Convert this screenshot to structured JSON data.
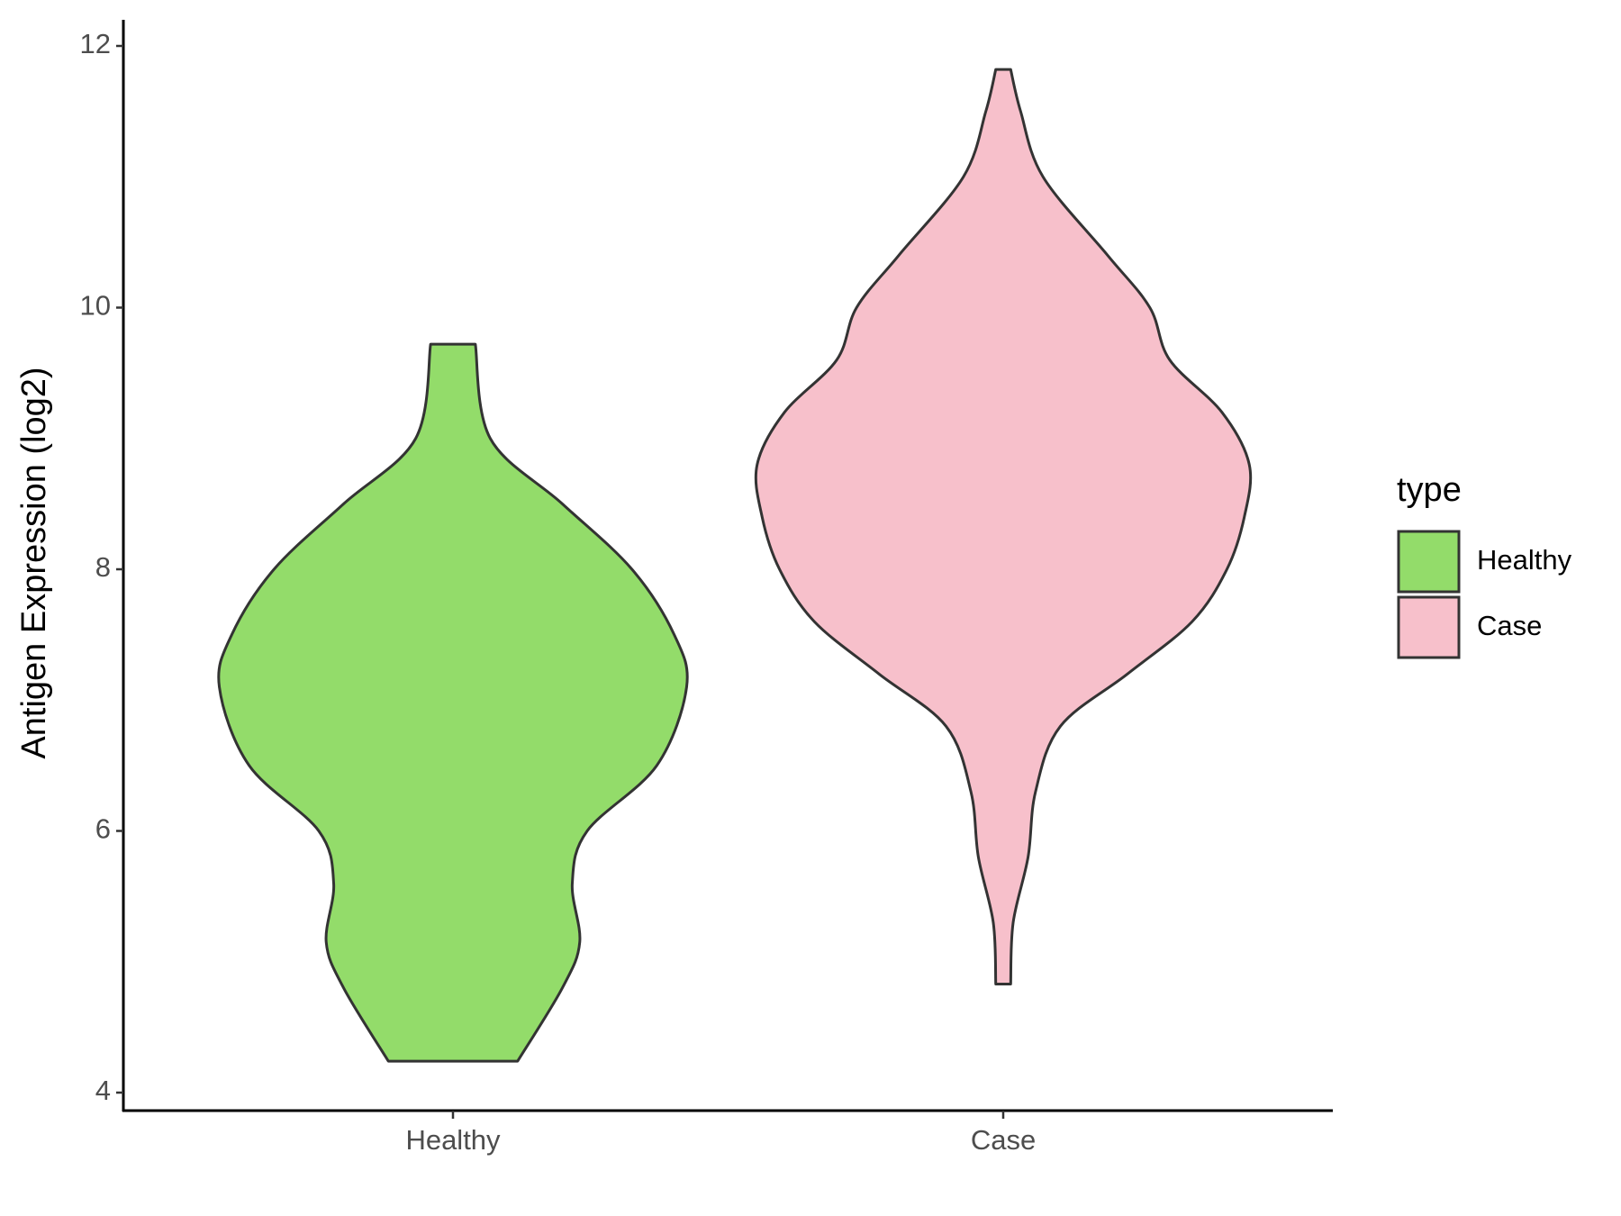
{
  "chart_data": {
    "type": "violin",
    "y_label": "Antigen Expression (log2)",
    "categories": [
      "Healthy",
      "Case"
    ],
    "legend_title": "type",
    "ylim": [
      4,
      12
    ],
    "yticks": [
      4,
      6,
      8,
      10,
      12
    ],
    "series": [
      {
        "name": "Healthy",
        "color": "#93dc6a",
        "y": [
          4.24,
          4.8,
          5.15,
          5.6,
          6.0,
          6.5,
          7.1,
          7.5,
          8.0,
          8.5,
          9.0,
          9.72
        ],
        "density": [
          0.26,
          0.44,
          0.51,
          0.48,
          0.54,
          0.82,
          0.94,
          0.89,
          0.72,
          0.44,
          0.15,
          0.09
        ]
      },
      {
        "name": "Case",
        "color": "#f7c0cb",
        "y": [
          4.83,
          5.3,
          5.8,
          6.3,
          6.8,
          7.2,
          7.6,
          8.0,
          8.4,
          8.8,
          9.2,
          9.6,
          10.0,
          10.4,
          11.0,
          11.5,
          11.82
        ],
        "density": [
          0.03,
          0.04,
          0.1,
          0.13,
          0.23,
          0.5,
          0.76,
          0.9,
          0.97,
          0.99,
          0.88,
          0.67,
          0.59,
          0.42,
          0.16,
          0.07,
          0.03
        ]
      }
    ]
  }
}
